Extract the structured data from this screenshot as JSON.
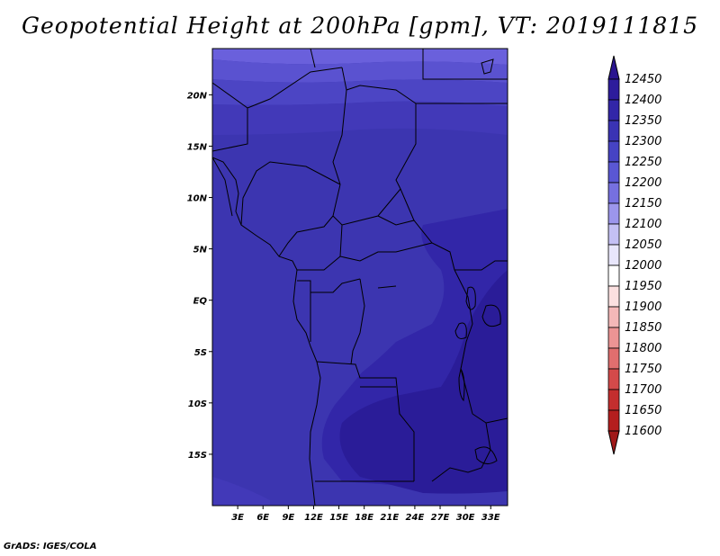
{
  "title": "Geopotential Height at 200hPa [gpm], VT: 2019111815",
  "credit": "GrADS: IGES/COLA",
  "map": {
    "lat_labels": [
      "20N",
      "15N",
      "10N",
      "5N",
      "EQ",
      "5S",
      "10S",
      "15S"
    ],
    "lat_values": [
      20,
      15,
      10,
      5,
      0,
      -5,
      -10,
      -15
    ],
    "lon_labels": [
      "3E",
      "6E",
      "9E",
      "12E",
      "15E",
      "18E",
      "21E",
      "24E",
      "27E",
      "30E",
      "33E"
    ],
    "lon_values": [
      3,
      6,
      9,
      12,
      15,
      18,
      21,
      24,
      27,
      30,
      33
    ],
    "lat_range": [
      -20,
      24.5
    ],
    "lon_range": [
      0,
      35
    ]
  },
  "colorbar": {
    "levels": [
      "12450",
      "12400",
      "12350",
      "12300",
      "12250",
      "12200",
      "12150",
      "12100",
      "12050",
      "12000",
      "11950",
      "11900",
      "11850",
      "11800",
      "11750",
      "11700",
      "11650",
      "11600"
    ],
    "colors": [
      "#2a1590",
      "#2d1c9c",
      "#3226a8",
      "#3a33b4",
      "#4643c4",
      "#5a57d4",
      "#7670e0",
      "#9c96ec",
      "#c4c0f4",
      "#e8e6fb",
      "#ffffff",
      "#fbe0e0",
      "#f4b8b8",
      "#ec9494",
      "#e06e6e",
      "#d44a4a",
      "#c42e2e",
      "#b41e1e",
      "#a01818"
    ]
  },
  "fields": {
    "base_color": "#3c35b0",
    "band_colors": [
      "#6a60dc",
      "#5a52d0",
      "#4c45c4",
      "#4239b8",
      "#3c35b0"
    ],
    "high_color": "#3226a8",
    "max_color": "#2a1c98"
  }
}
